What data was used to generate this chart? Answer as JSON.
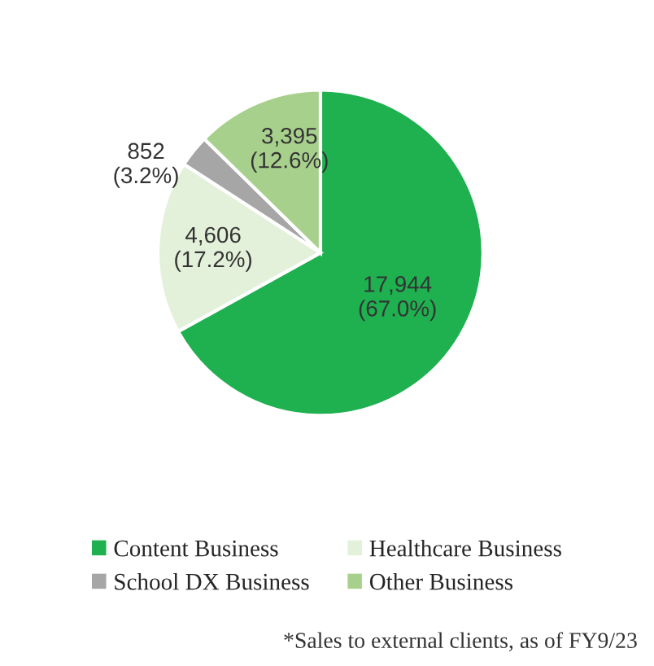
{
  "chart_data": {
    "type": "pie",
    "categories": [
      "Content Business",
      "Healthcare Business",
      "School DX Business",
      "Other Business"
    ],
    "values": [
      17944,
      4606,
      852,
      3395
    ],
    "value_labels": [
      "17,944\n(67.0%)",
      "4,606\n(17.2%)",
      "852\n(3.2%)",
      "3,395\n(12.6%)"
    ],
    "colors": [
      "#1fb04f",
      "#e3f0da",
      "#a6a6a6",
      "#a8d08d"
    ],
    "legend": "bottom",
    "annotations": [
      "*Sales to external clients, as of FY9/23"
    ]
  }
}
